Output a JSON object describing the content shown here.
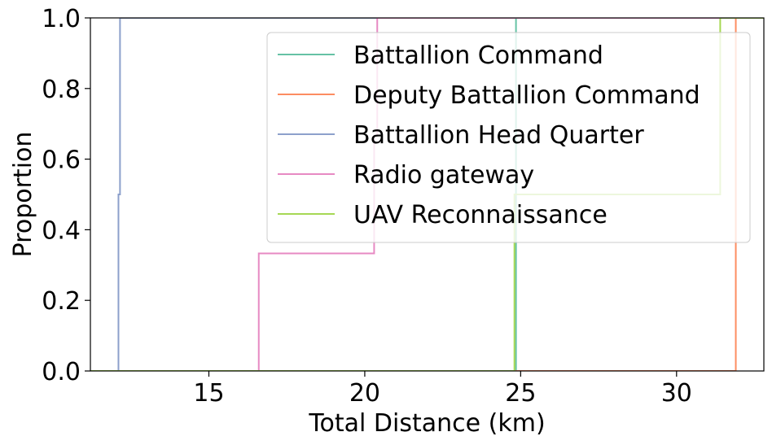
{
  "chart_data": {
    "type": "line",
    "subtype": "ecdf-step",
    "title": "",
    "xlabel": "Total Distance (km)",
    "ylabel": "Proportion",
    "xlim": [
      11.2,
      32.8
    ],
    "ylim": [
      0.0,
      1.0
    ],
    "xticks": [
      15,
      20,
      25,
      30
    ],
    "xtick_labels": [
      "15",
      "20",
      "25",
      "30"
    ],
    "yticks": [
      0.0,
      0.2,
      0.4,
      0.6,
      0.8,
      1.0
    ],
    "ytick_labels": [
      "0.0",
      "0.2",
      "0.4",
      "0.6",
      "0.8",
      "1.0"
    ],
    "grid": false,
    "legend_position": "upper right",
    "series": [
      {
        "name": "Battallion Command",
        "color": "#66c2a5",
        "x": [
          24.85
        ],
        "y": [
          1.0
        ]
      },
      {
        "name": "Deputy Battallion Command",
        "color": "#fc8d62",
        "x": [
          31.9
        ],
        "y": [
          1.0
        ]
      },
      {
        "name": "Battallion Head Quarter",
        "color": "#8da0cb",
        "x": [
          12.1,
          12.15
        ],
        "y": [
          0.5,
          1.0
        ]
      },
      {
        "name": "Radio gateway",
        "color": "#e78ac3",
        "x": [
          16.6,
          20.3,
          20.4
        ],
        "y": [
          0.333,
          0.667,
          1.0
        ]
      },
      {
        "name": "UAV Reconnaissance",
        "color": "#a6d854",
        "x": [
          24.8,
          31.4
        ],
        "y": [
          0.5,
          1.0
        ]
      }
    ]
  }
}
